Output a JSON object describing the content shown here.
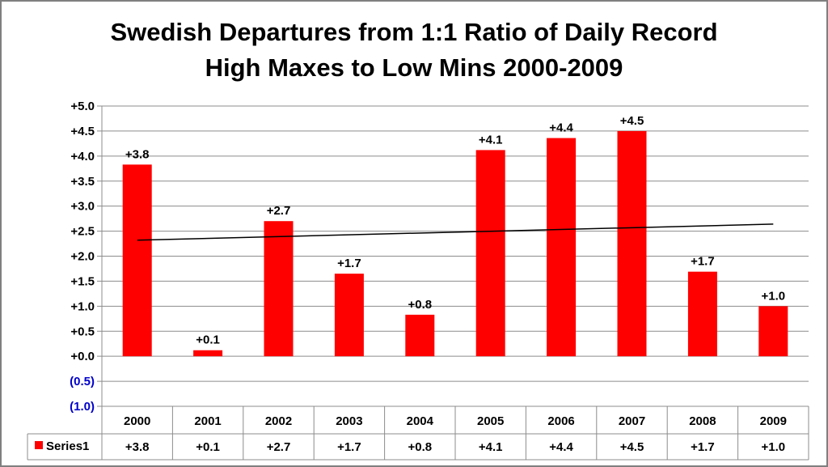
{
  "chart_data": {
    "type": "bar",
    "title_line1": "Swedish Departures from 1:1 Ratio of Daily Record",
    "title_line2": "High Maxes to Low Mins 2000-2009",
    "categories": [
      "2000",
      "2001",
      "2002",
      "2003",
      "2004",
      "2005",
      "2006",
      "2007",
      "2008",
      "2009"
    ],
    "series": [
      {
        "name": "Series1",
        "values": [
          3.83,
          0.12,
          2.7,
          1.65,
          0.83,
          4.12,
          4.36,
          4.5,
          1.69,
          1.0
        ],
        "labels": [
          "+3.8",
          "+0.1",
          "+2.7",
          "+1.7",
          "+0.8",
          "+4.1",
          "+4.4",
          "+4.5",
          "+1.7",
          "+1.0"
        ],
        "color": "#ff0000"
      }
    ],
    "trendline": {
      "type": "linear",
      "start": 2.32,
      "end": 2.64,
      "color": "#000000"
    },
    "ylim": [
      -1.0,
      5.0
    ],
    "y_ticks": [
      {
        "value": 5.0,
        "label": "+5.0",
        "color": "#000000"
      },
      {
        "value": 4.5,
        "label": "+4.5",
        "color": "#000000"
      },
      {
        "value": 4.0,
        "label": "+4.0",
        "color": "#000000"
      },
      {
        "value": 3.5,
        "label": "+3.5",
        "color": "#000000"
      },
      {
        "value": 3.0,
        "label": "+3.0",
        "color": "#000000"
      },
      {
        "value": 2.5,
        "label": "+2.5",
        "color": "#000000"
      },
      {
        "value": 2.0,
        "label": "+2.0",
        "color": "#000000"
      },
      {
        "value": 1.5,
        "label": "+1.5",
        "color": "#000000"
      },
      {
        "value": 1.0,
        "label": "+1.0",
        "color": "#000000"
      },
      {
        "value": 0.5,
        "label": "+0.5",
        "color": "#000000"
      },
      {
        "value": 0.0,
        "label": "+0.0",
        "color": "#000000"
      },
      {
        "value": -0.5,
        "label": "(0.5)",
        "color": "#0000cc"
      },
      {
        "value": -1.0,
        "label": "(1.0)",
        "color": "#0000cc"
      }
    ],
    "grid": true,
    "data_table": true,
    "legend": "data-table"
  }
}
